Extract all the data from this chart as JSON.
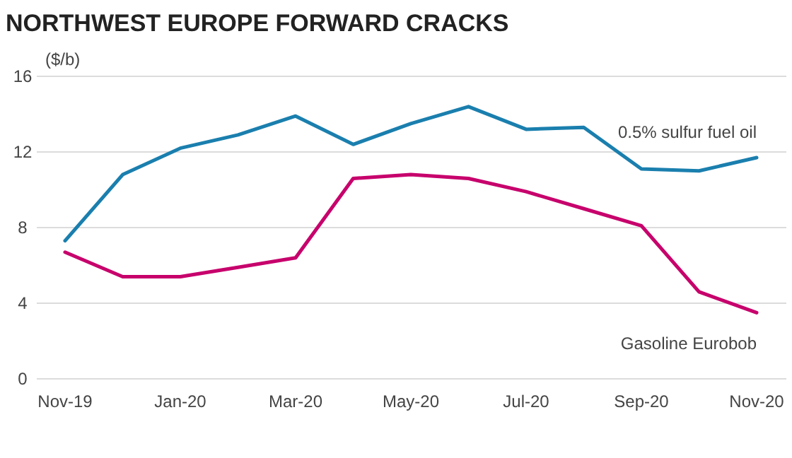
{
  "chart_data": {
    "type": "line",
    "title": "NORTHWEST EUROPE FORWARD CRACKS",
    "ylabel": "($/b)",
    "categories": [
      "Nov-19",
      null,
      "Jan-20",
      null,
      "Mar-20",
      null,
      "May-20",
      null,
      "Jul-20",
      null,
      "Sep-20",
      null,
      "Nov-20"
    ],
    "series": [
      {
        "name": "0.5% sulfur fuel oil",
        "color": "#1a7fae",
        "values": [
          7.3,
          10.8,
          12.2,
          12.9,
          13.9,
          12.4,
          13.5,
          14.4,
          13.2,
          13.3,
          11.1,
          11.0,
          11.7
        ]
      },
      {
        "name": "Gasoline Eurobob",
        "color": "#c7006c",
        "values": [
          6.7,
          5.4,
          5.4,
          5.9,
          6.4,
          10.6,
          10.8,
          10.6,
          9.9,
          9.0,
          8.1,
          4.6,
          3.5
        ]
      }
    ],
    "ylim": [
      0,
      16
    ],
    "yticks": [
      0,
      4,
      8,
      12,
      16
    ],
    "grid": "y",
    "legend": false,
    "marker": "none",
    "line_style": "solid"
  }
}
